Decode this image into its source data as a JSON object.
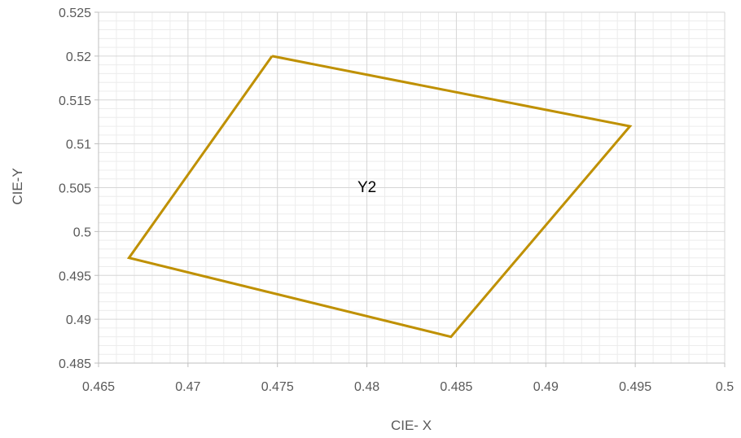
{
  "chart_data": {
    "type": "scatter",
    "title": "",
    "xlabel": "CIE- X",
    "ylabel": "CIE-Y",
    "xlim": [
      0.465,
      0.5
    ],
    "ylim": [
      0.485,
      0.525
    ],
    "x_major_step": 0.005,
    "y_major_step": 0.005,
    "x_tick_labels": [
      "0.465",
      "0.47",
      "0.475",
      "0.48",
      "0.485",
      "0.49",
      "0.495",
      "0.5"
    ],
    "y_tick_labels": [
      "0.485",
      "0.49",
      "0.495",
      "0.5",
      "0.505",
      "0.51",
      "0.515",
      "0.52",
      "0.525"
    ],
    "grid": "major and minor",
    "legend": "none",
    "series": [
      {
        "color": "#BF9000",
        "x": [
          0.4747,
          0.4947,
          0.4847,
          0.4667,
          0.4747
        ],
        "y": [
          0.52,
          0.512,
          0.488,
          0.497,
          0.52
        ]
      }
    ],
    "annotations": [
      {
        "text": "Y2",
        "x": 0.48,
        "y": 0.5045
      }
    ]
  }
}
